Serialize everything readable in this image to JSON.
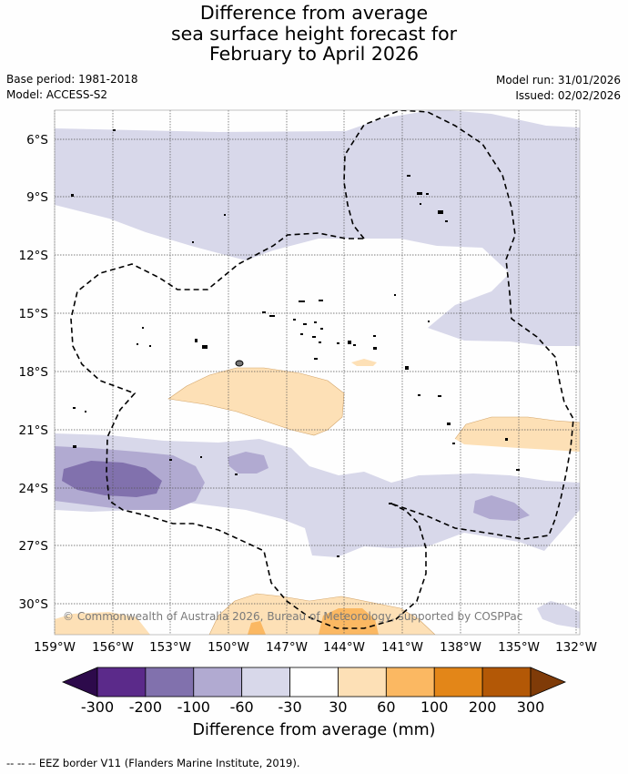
{
  "title_lines": [
    "Difference from average",
    "sea surface height forecast for",
    "February to April 2026"
  ],
  "base_period": "Base period: 1981-2018",
  "model": "Model: ACCESS-S2",
  "model_run": "Model run: 31/01/2026",
  "issued": "Issued: 02/02/2026",
  "copyright": "© Commonwealth of Australia 2026, Bureau of Meteorology, supported by COSPPac",
  "latitude_labels": [
    "6°S",
    "9°S",
    "12°S",
    "15°S",
    "18°S",
    "21°S",
    "24°S",
    "27°S",
    "30°S"
  ],
  "longitude_labels": [
    "159°W",
    "156°W",
    "153°W",
    "150°W",
    "147°W",
    "144°W",
    "141°W",
    "138°W",
    "135°W",
    "132°W"
  ],
  "colorbar": {
    "title": "Difference from average (mm)",
    "tick_labels": [
      "-300",
      "-200",
      "-100",
      "-60",
      "-30",
      "30",
      "60",
      "100",
      "200",
      "300"
    ],
    "colors": [
      "#2d0a4b",
      "#5b2a8a",
      "#8171ad",
      "#b1aad1",
      "#d8d8ea",
      "#ffffff",
      "#fde0b6",
      "#fbb862",
      "#e38618",
      "#b35806",
      "#7f3b08"
    ]
  },
  "legend_note": "--  --  -- EEZ border V11 (Flanders Marine Institute, 2019)."
}
